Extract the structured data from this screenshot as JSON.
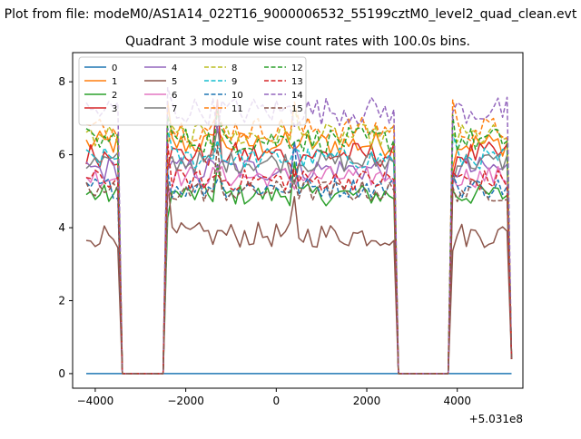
{
  "chart_data": {
    "type": "line",
    "suptitle": "Plot from file: modeM0/AS1A14_022T16_9000006532_55199cztM0_level2_quad_clean.evt",
    "title": "Quadrant 3 module wise count rates with 100.0s bins.",
    "xlabel": "",
    "ylabel": "",
    "x_offset_label": "+5.031e8",
    "xlim": [
      -4500,
      5450
    ],
    "ylim": [
      -0.4,
      8.8
    ],
    "xticks": [
      -4000,
      -2000,
      0,
      2000,
      4000
    ],
    "xtick_labels": [
      "−4000",
      "−2000",
      "0",
      "2000",
      "4000"
    ],
    "yticks": [
      0,
      2,
      4,
      6,
      8
    ],
    "ytick_labels": [
      "0",
      "2",
      "4",
      "6",
      "8"
    ],
    "grid": false,
    "legend_position": "top-left",
    "legend_columns": 4,
    "x_range": [
      -4200,
      5200
    ],
    "segments": [
      {
        "x": [
          -4200,
          -3400
        ],
        "active": true
      },
      {
        "x": [
          -3400,
          -2400
        ],
        "active": false
      },
      {
        "x": [
          -2400,
          -1300
        ],
        "active": true
      },
      {
        "x": [
          -1300,
          400
        ],
        "active": true
      },
      {
        "x": [
          400,
          2700
        ],
        "active": true
      },
      {
        "x": [
          2700,
          3900
        ],
        "active": false
      },
      {
        "x": [
          3900,
          5200
        ],
        "active": true
      }
    ],
    "series": [
      {
        "name": "0",
        "color": "#1f77b4",
        "style": "solid",
        "level": 0.0,
        "noise": 0.0,
        "constant": true
      },
      {
        "name": "1",
        "color": "#ff7f0e",
        "style": "solid",
        "level": 6.3,
        "noise": 0.35
      },
      {
        "name": "2",
        "color": "#2ca02c",
        "style": "solid",
        "level": 4.9,
        "noise": 0.3
      },
      {
        "name": "3",
        "color": "#d62728",
        "style": "solid",
        "level": 6.0,
        "noise": 0.35
      },
      {
        "name": "4",
        "color": "#9467bd",
        "style": "solid",
        "level": 5.6,
        "noise": 0.35
      },
      {
        "name": "5",
        "color": "#8c564b",
        "style": "solid",
        "level": 3.8,
        "noise": 0.35
      },
      {
        "name": "6",
        "color": "#e377c2",
        "style": "solid",
        "level": 5.4,
        "noise": 0.3
      },
      {
        "name": "7",
        "color": "#7f7f7f",
        "style": "solid",
        "level": 5.8,
        "noise": 0.3
      },
      {
        "name": "8",
        "color": "#bcbd22",
        "style": "dashed",
        "level": 6.5,
        "noise": 0.35
      },
      {
        "name": "9",
        "color": "#17becf",
        "style": "dashed",
        "level": 5.9,
        "noise": 0.3
      },
      {
        "name": "10",
        "color": "#1f77b4",
        "style": "dashed",
        "level": 5.1,
        "noise": 0.3
      },
      {
        "name": "11",
        "color": "#ff7f0e",
        "style": "dashed",
        "level": 6.7,
        "noise": 0.35
      },
      {
        "name": "12",
        "color": "#2ca02c",
        "style": "dashed",
        "level": 6.4,
        "noise": 0.35
      },
      {
        "name": "13",
        "color": "#d62728",
        "style": "dashed",
        "level": 5.3,
        "noise": 0.3
      },
      {
        "name": "14",
        "color": "#9467bd",
        "style": "dashed",
        "level": 7.2,
        "noise": 0.4
      },
      {
        "name": "15",
        "color": "#8c564b",
        "style": "dashed",
        "level": 5.0,
        "noise": 0.3
      }
    ]
  }
}
